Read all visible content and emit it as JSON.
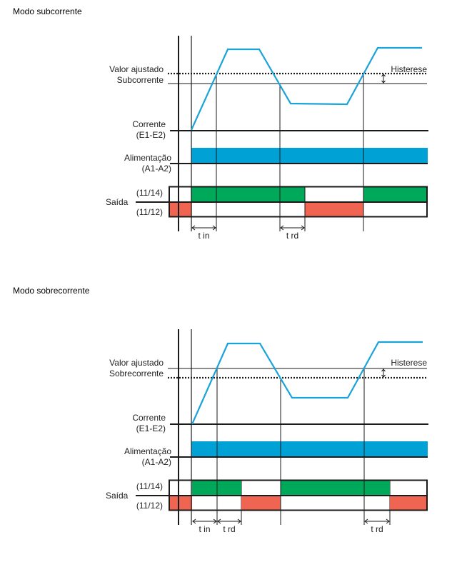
{
  "colors": {
    "current": "#1aa3d9",
    "supply": "#00a2d6",
    "on": "#00a85a",
    "off": "#ef6551",
    "line": "#1a1a1a"
  },
  "diagrams": [
    {
      "title": "Modo subcorrente",
      "set_value_label": "Valor ajustado",
      "mode_label": "Subcorrente",
      "hysteresis_label": "Histerese",
      "current_label": "Corrente",
      "current_terminals": "(E1-E2)",
      "supply_label": "Alimentação",
      "supply_terminals": "(A1-A2)",
      "output_label": "Saída",
      "contact_no": "(11/14)",
      "contact_nc": "(11/12)",
      "timers": [
        "t in",
        "t rd"
      ]
    },
    {
      "title": "Modo sobrecorrente",
      "set_value_label": "Valor ajustado",
      "mode_label": "Sobrecorrente",
      "hysteresis_label": "Histerese",
      "current_label": "Corrente",
      "current_terminals": "(E1-E2)",
      "supply_label": "Alimentação",
      "supply_terminals": "(A1-A2)",
      "output_label": "Saída",
      "contact_no": "(11/14)",
      "contact_nc": "(11/12)",
      "timers": [
        "t in",
        "t rd",
        "t rd"
      ]
    }
  ]
}
